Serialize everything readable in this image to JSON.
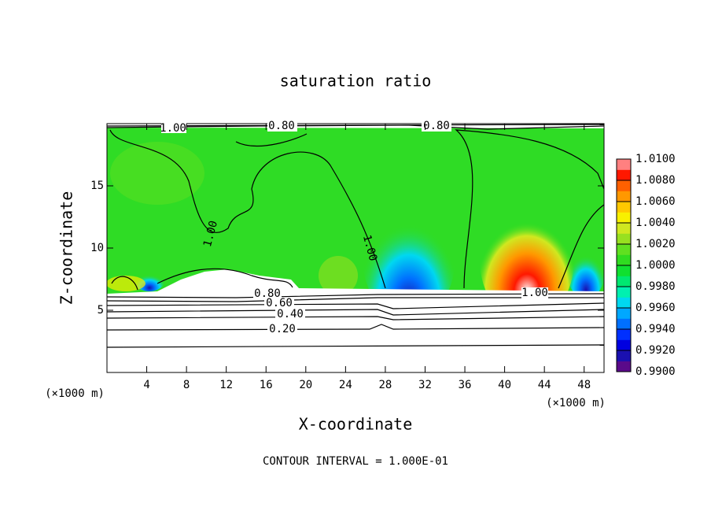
{
  "chart_data": {
    "type": "contour",
    "title": "saturation ratio",
    "x_label": "X-coordinate",
    "y_label": "Z-coordinate",
    "x_unit": "(×1000 m)",
    "y_unit": "(×1000 m)",
    "footer": "CONTOUR INTERVAL = 1.000E-01",
    "xlim": [
      0,
      50
    ],
    "xticks": [
      4,
      8,
      12,
      16,
      20,
      24,
      28,
      32,
      36,
      40,
      44,
      48
    ],
    "ylim": [
      0,
      20
    ],
    "yticks": [
      5,
      10,
      15
    ],
    "contour_labels": [
      "1.00",
      "0.80",
      "0.80",
      "1.00",
      "1.00",
      "1.00",
      "0.80",
      "0.60",
      "0.40",
      "0.20"
    ],
    "colorbar": {
      "lim": [
        0.99,
        1.01
      ],
      "ticks": [
        {
          "value": 0.99,
          "label": "0.9900"
        },
        {
          "value": 0.992,
          "label": "0.9920"
        },
        {
          "value": 0.994,
          "label": "0.9940"
        },
        {
          "value": 0.996,
          "label": "0.9960"
        },
        {
          "value": 0.998,
          "label": "0.9980"
        },
        {
          "value": 1.0,
          "label": "1.0000"
        },
        {
          "value": 1.002,
          "label": "1.0020"
        },
        {
          "value": 1.004,
          "label": "1.0040"
        },
        {
          "value": 1.006,
          "label": "1.0060"
        },
        {
          "value": 1.008,
          "label": "1.0080"
        },
        {
          "value": 1.01,
          "label": "1.0100"
        }
      ],
      "colors": [
        "#5a0a8a",
        "#1a10b0",
        "#0000e0",
        "#0030ff",
        "#0070ff",
        "#00a8ff",
        "#00d8f0",
        "#00f0b0",
        "#00e870",
        "#10e030",
        "#30dc20",
        "#60e020",
        "#98e020",
        "#d0e820",
        "#f8f000",
        "#ffc800",
        "#ff9800",
        "#ff6000",
        "#ff1800",
        "#ff8080"
      ]
    }
  }
}
